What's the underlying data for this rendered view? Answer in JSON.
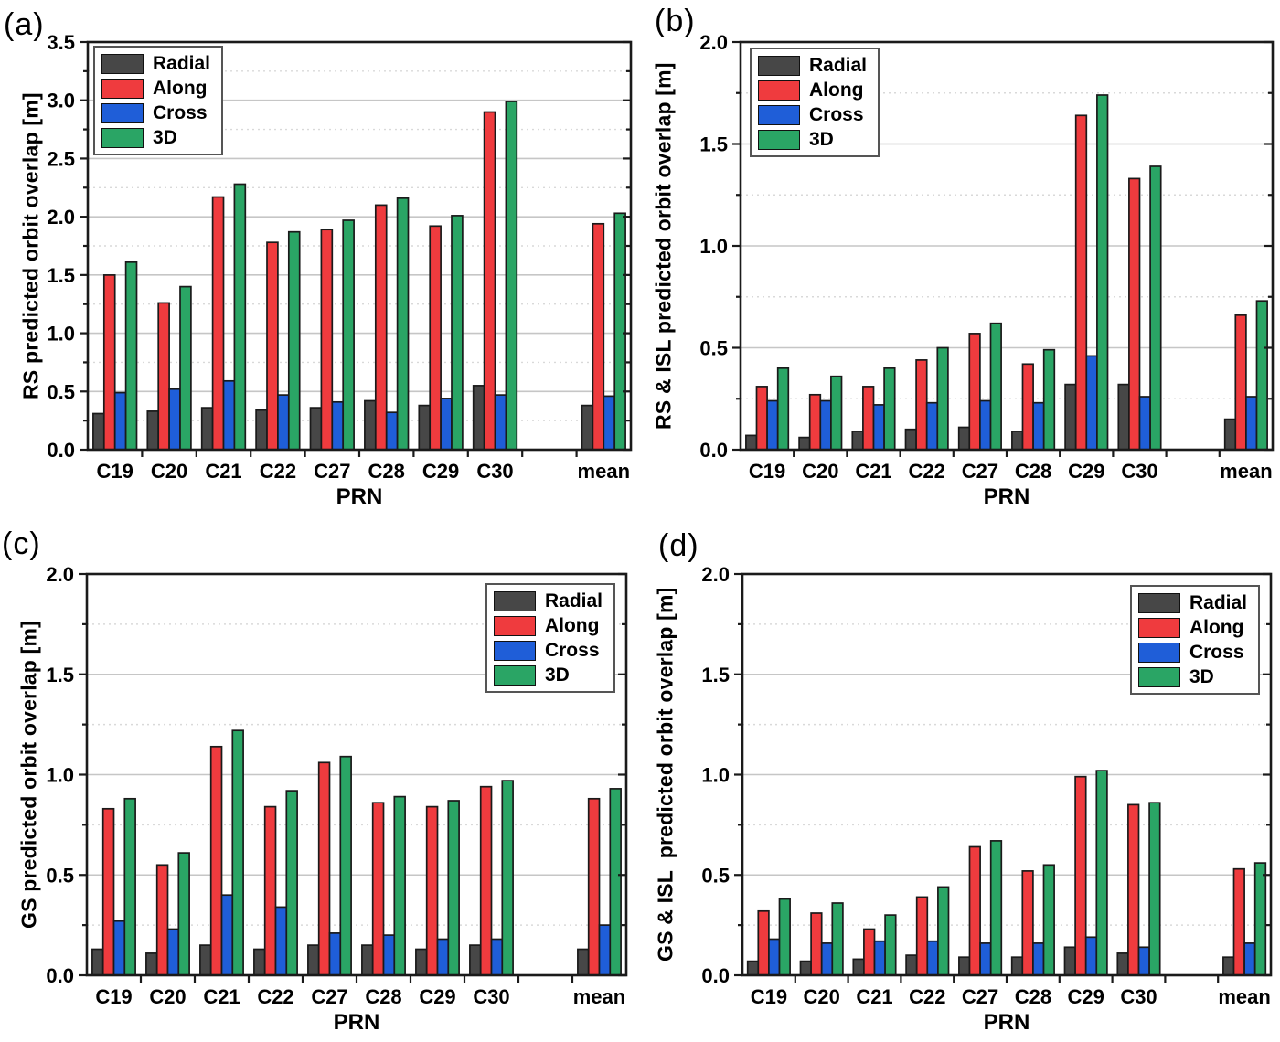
{
  "figure": {
    "background": "#ffffff",
    "x_axis_title": "PRN",
    "series_labels": [
      "Radial",
      "Along",
      "Cross",
      "3D"
    ],
    "series_colors": {
      "Radial": "#474747",
      "Along": "#ef3b3e",
      "Cross": "#1f5ed8",
      "3D": "#2aa565"
    },
    "grid_major_color": "#c6c6c6",
    "grid_minor_color": "#d9d9d9",
    "frame_color": "#1a1a1a",
    "bar_outline_color": "#1a1a1a"
  },
  "chart_data": [
    {
      "type": "bar",
      "panel_label": "(a)",
      "ylabel": "RS predicted orbit overlap [m]",
      "xlabel": "PRN",
      "ylim": [
        0,
        3.5
      ],
      "ytick_step": 0.5,
      "yminor_step": 0.25,
      "grid": "horizontal major solid + minor dotted",
      "legend_position": "top-left",
      "categories": [
        "C19",
        "C20",
        "C21",
        "C22",
        "C27",
        "C28",
        "C29",
        "C30",
        "mean"
      ],
      "series": [
        {
          "name": "Radial",
          "values": [
            0.31,
            0.33,
            0.36,
            0.34,
            0.36,
            0.42,
            0.38,
            0.55,
            0.38
          ]
        },
        {
          "name": "Along",
          "values": [
            1.5,
            1.26,
            2.17,
            1.78,
            1.89,
            2.1,
            1.92,
            2.9,
            1.94
          ]
        },
        {
          "name": "Cross",
          "values": [
            0.49,
            0.52,
            0.59,
            0.47,
            0.41,
            0.32,
            0.44,
            0.47,
            0.46
          ]
        },
        {
          "name": "3D",
          "values": [
            1.61,
            1.4,
            2.28,
            1.87,
            1.97,
            2.16,
            2.01,
            2.99,
            2.03
          ]
        }
      ]
    },
    {
      "type": "bar",
      "panel_label": "(b)",
      "ylabel": "RS & ISL predicted orbit overlap [m]",
      "xlabel": "PRN",
      "ylim": [
        0,
        2.0
      ],
      "ytick_step": 0.5,
      "yminor_step": 0.25,
      "grid": "horizontal major solid + minor dotted",
      "legend_position": "top-left",
      "categories": [
        "C19",
        "C20",
        "C21",
        "C22",
        "C27",
        "C28",
        "C29",
        "C30",
        "mean"
      ],
      "series": [
        {
          "name": "Radial",
          "values": [
            0.07,
            0.06,
            0.09,
            0.1,
            0.11,
            0.09,
            0.32,
            0.32,
            0.15
          ]
        },
        {
          "name": "Along",
          "values": [
            0.31,
            0.27,
            0.31,
            0.44,
            0.57,
            0.42,
            1.64,
            1.33,
            0.66
          ]
        },
        {
          "name": "Cross",
          "values": [
            0.24,
            0.24,
            0.22,
            0.23,
            0.24,
            0.23,
            0.46,
            0.26,
            0.26
          ]
        },
        {
          "name": "3D",
          "values": [
            0.4,
            0.36,
            0.4,
            0.5,
            0.62,
            0.49,
            1.74,
            1.39,
            0.73
          ]
        }
      ]
    },
    {
      "type": "bar",
      "panel_label": "(c)",
      "ylabel": "GS predicted orbit overlap [m]",
      "xlabel": "PRN",
      "ylim": [
        0,
        2.0
      ],
      "ytick_step": 0.5,
      "yminor_step": 0.25,
      "grid": "horizontal major solid + minor dotted",
      "legend_position": "top-right",
      "categories": [
        "C19",
        "C20",
        "C21",
        "C22",
        "C27",
        "C28",
        "C29",
        "C30",
        "mean"
      ],
      "series": [
        {
          "name": "Radial",
          "values": [
            0.13,
            0.11,
            0.15,
            0.13,
            0.15,
            0.15,
            0.13,
            0.15,
            0.13
          ]
        },
        {
          "name": "Along",
          "values": [
            0.83,
            0.55,
            1.14,
            0.84,
            1.06,
            0.86,
            0.84,
            0.94,
            0.88
          ]
        },
        {
          "name": "Cross",
          "values": [
            0.27,
            0.23,
            0.4,
            0.34,
            0.21,
            0.2,
            0.18,
            0.18,
            0.25
          ]
        },
        {
          "name": "3D",
          "values": [
            0.88,
            0.61,
            1.22,
            0.92,
            1.09,
            0.89,
            0.87,
            0.97,
            0.93
          ]
        }
      ]
    },
    {
      "type": "bar",
      "panel_label": "(d)",
      "ylabel": "GS & ISL  predicted orbit overlap [m]",
      "xlabel": "PRN",
      "ylim": [
        0,
        2.0
      ],
      "ytick_step": 0.5,
      "yminor_step": 0.25,
      "grid": "horizontal major solid + minor dotted",
      "legend_position": "top-right",
      "categories": [
        "C19",
        "C20",
        "C21",
        "C22",
        "C27",
        "C28",
        "C29",
        "C30",
        "mean"
      ],
      "series": [
        {
          "name": "Radial",
          "values": [
            0.07,
            0.07,
            0.08,
            0.1,
            0.09,
            0.09,
            0.14,
            0.11,
            0.09
          ]
        },
        {
          "name": "Along",
          "values": [
            0.32,
            0.31,
            0.23,
            0.39,
            0.64,
            0.52,
            0.99,
            0.85,
            0.53
          ]
        },
        {
          "name": "Cross",
          "values": [
            0.18,
            0.16,
            0.17,
            0.17,
            0.16,
            0.16,
            0.19,
            0.14,
            0.16
          ]
        },
        {
          "name": "3D",
          "values": [
            0.38,
            0.36,
            0.3,
            0.44,
            0.67,
            0.55,
            1.02,
            0.86,
            0.56
          ]
        }
      ]
    }
  ]
}
